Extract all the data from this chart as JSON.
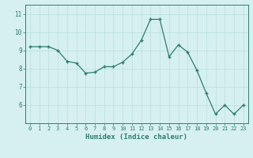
{
  "x": [
    0,
    1,
    2,
    3,
    4,
    5,
    6,
    7,
    8,
    9,
    10,
    11,
    12,
    13,
    14,
    15,
    16,
    17,
    18,
    19,
    20,
    21,
    22,
    23
  ],
  "y": [
    9.2,
    9.2,
    9.2,
    9.0,
    8.4,
    8.3,
    7.75,
    7.8,
    8.1,
    8.1,
    8.35,
    8.8,
    9.55,
    10.7,
    10.7,
    8.65,
    9.3,
    8.9,
    7.9,
    6.65,
    5.5,
    6.0,
    5.5,
    6.0
  ],
  "xlabel": "Humidex (Indice chaleur)",
  "ylim": [
    5.0,
    11.5
  ],
  "xlim": [
    -0.5,
    23.5
  ],
  "line_color": "#2e7d6e",
  "marker": "+",
  "bg_color": "#d6f0f0",
  "grid_color": "#b8dede",
  "tick_color": "#2e7d6e",
  "label_color": "#2e7d6e",
  "yticks": [
    6,
    7,
    8,
    9,
    10,
    11
  ],
  "xticks": [
    0,
    1,
    2,
    3,
    4,
    5,
    6,
    7,
    8,
    9,
    10,
    11,
    12,
    13,
    14,
    15,
    16,
    17,
    18,
    19,
    20,
    21,
    22,
    23
  ],
  "xtick_labels": [
    "0",
    "1",
    "2",
    "3",
    "4",
    "5",
    "6",
    "7",
    "8",
    "9",
    "10",
    "11",
    "12",
    "13",
    "14",
    "15",
    "16",
    "17",
    "18",
    "19",
    "20",
    "21",
    "22",
    "23"
  ]
}
